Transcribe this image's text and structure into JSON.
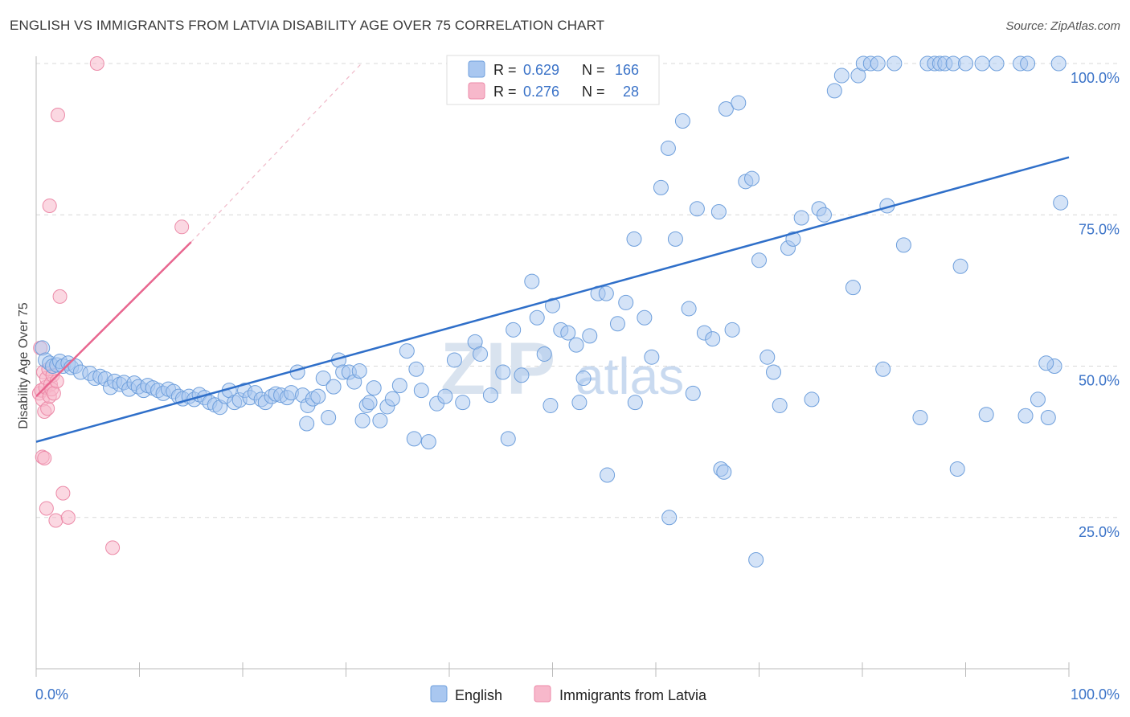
{
  "title": "ENGLISH VS IMMIGRANTS FROM LATVIA DISABILITY AGE OVER 75 CORRELATION CHART",
  "source": "Source: ZipAtlas.com",
  "watermark": {
    "zip": "ZIP",
    "atlas": "atlas"
  },
  "colors": {
    "english": "#a9c7f0",
    "english_stroke": "#6e9fdc",
    "english_line": "#2f6fc9",
    "latvia": "#f7b8cb",
    "latvia_stroke": "#ec8aa8",
    "latvia_line": "#e8668f",
    "grid": "#d8d8d8",
    "tick_label": "#3b73c8"
  },
  "legend_box": {
    "rows": [
      {
        "r_label": "R =",
        "r_value": "0.629",
        "n_label": "N =",
        "n_value": "166"
      },
      {
        "r_label": "R =",
        "r_value": "0.276",
        "n_label": "N =",
        "n_value": "28"
      }
    ]
  },
  "bottom_legend": {
    "english": "English",
    "latvia": "Immigrants from Latvia"
  },
  "chart_data": {
    "type": "scatter",
    "xlabel": "",
    "ylabel": "Disability Age Over 75",
    "xlim": [
      0,
      100
    ],
    "ylim": [
      0,
      100
    ],
    "x_tick_labels": [
      "0.0%",
      "100.0%"
    ],
    "y_tick_labels": [
      "25.0%",
      "50.0%",
      "75.0%",
      "100.0%"
    ],
    "y_ticks": [
      25,
      50,
      75,
      100
    ],
    "grid": true,
    "legend_placement": "bottom-center",
    "series": [
      {
        "name": "English",
        "r": 0.629,
        "n": 166,
        "trend": {
          "x0": 0,
          "y0": 37.5,
          "x1": 100,
          "y1": 84.5
        },
        "points": [
          [
            0.6,
            53.0
          ],
          [
            0.9,
            51.0
          ],
          [
            1.3,
            50.5
          ],
          [
            1.6,
            50.0
          ],
          [
            2.0,
            50.2
          ],
          [
            2.3,
            50.8
          ],
          [
            2.6,
            50.0
          ],
          [
            3.1,
            50.5
          ],
          [
            3.4,
            49.8
          ],
          [
            3.8,
            50.0
          ],
          [
            4.3,
            49.0
          ],
          [
            5.2,
            48.8
          ],
          [
            5.7,
            48.0
          ],
          [
            6.2,
            48.3
          ],
          [
            6.7,
            47.9
          ],
          [
            7.2,
            46.5
          ],
          [
            7.6,
            47.5
          ],
          [
            8.1,
            47.0
          ],
          [
            8.5,
            47.3
          ],
          [
            9.0,
            46.2
          ],
          [
            9.5,
            47.2
          ],
          [
            9.9,
            46.6
          ],
          [
            10.4,
            46.0
          ],
          [
            10.8,
            46.8
          ],
          [
            11.3,
            46.4
          ],
          [
            11.8,
            46.0
          ],
          [
            12.3,
            45.5
          ],
          [
            12.8,
            46.2
          ],
          [
            13.3,
            45.8
          ],
          [
            13.8,
            45.0
          ],
          [
            14.2,
            44.6
          ],
          [
            14.8,
            45.0
          ],
          [
            15.3,
            44.5
          ],
          [
            15.8,
            45.3
          ],
          [
            16.3,
            44.8
          ],
          [
            16.8,
            44.0
          ],
          [
            17.3,
            43.6
          ],
          [
            17.8,
            43.2
          ],
          [
            18.3,
            45.0
          ],
          [
            18.7,
            46.0
          ],
          [
            19.2,
            44.0
          ],
          [
            19.7,
            44.4
          ],
          [
            20.2,
            46.0
          ],
          [
            20.7,
            44.8
          ],
          [
            21.2,
            45.6
          ],
          [
            21.8,
            44.5
          ],
          [
            22.2,
            44.0
          ],
          [
            22.8,
            45.0
          ],
          [
            23.2,
            45.4
          ],
          [
            23.7,
            45.2
          ],
          [
            24.3,
            44.8
          ],
          [
            24.7,
            45.6
          ],
          [
            25.3,
            49.0
          ],
          [
            25.8,
            45.2
          ],
          [
            26.3,
            43.5
          ],
          [
            26.8,
            44.6
          ],
          [
            27.3,
            45.0
          ],
          [
            27.8,
            48.0
          ],
          [
            28.3,
            41.5
          ],
          [
            28.8,
            46.6
          ],
          [
            29.3,
            51.0
          ],
          [
            29.7,
            49.0
          ],
          [
            30.3,
            49.0
          ],
          [
            30.8,
            47.4
          ],
          [
            31.3,
            49.2
          ],
          [
            32.0,
            43.5
          ],
          [
            32.3,
            44.0
          ],
          [
            32.7,
            46.4
          ],
          [
            33.3,
            41.0
          ],
          [
            34.0,
            43.3
          ],
          [
            34.5,
            44.6
          ],
          [
            35.2,
            46.8
          ],
          [
            35.9,
            52.5
          ],
          [
            36.6,
            38.0
          ],
          [
            37.3,
            46.0
          ],
          [
            36.8,
            49.5
          ],
          [
            38.8,
            43.8
          ],
          [
            39.6,
            45.0
          ],
          [
            40.5,
            51.0
          ],
          [
            41.3,
            44.0
          ],
          [
            42.5,
            54.0
          ],
          [
            43.0,
            52.0
          ],
          [
            44.0,
            45.2
          ],
          [
            45.2,
            49.0
          ],
          [
            46.2,
            56.0
          ],
          [
            47.0,
            48.5
          ],
          [
            48.0,
            64.0
          ],
          [
            48.5,
            58.0
          ],
          [
            49.2,
            52.0
          ],
          [
            50.0,
            60.0
          ],
          [
            50.8,
            56.0
          ],
          [
            51.5,
            55.5
          ],
          [
            52.3,
            53.5
          ],
          [
            53.0,
            48.0
          ],
          [
            53.6,
            55.0
          ],
          [
            54.4,
            62.0
          ],
          [
            55.2,
            62.0
          ],
          [
            56.3,
            57.0
          ],
          [
            57.1,
            60.5
          ],
          [
            57.9,
            71.0
          ],
          [
            58.9,
            58.0
          ],
          [
            59.6,
            51.5
          ],
          [
            60.5,
            79.5
          ],
          [
            61.2,
            86.0
          ],
          [
            61.9,
            71.0
          ],
          [
            62.6,
            90.5
          ],
          [
            63.2,
            59.5
          ],
          [
            64.0,
            76.0
          ],
          [
            64.7,
            55.5
          ],
          [
            65.5,
            54.5
          ],
          [
            66.1,
            75.5
          ],
          [
            66.8,
            92.5
          ],
          [
            67.4,
            56.0
          ],
          [
            68.0,
            93.5
          ],
          [
            68.7,
            80.5
          ],
          [
            69.3,
            81.0
          ],
          [
            70.0,
            67.5
          ],
          [
            70.8,
            51.5
          ],
          [
            71.4,
            49.0
          ],
          [
            72.0,
            43.5
          ],
          [
            72.8,
            69.5
          ],
          [
            73.3,
            71.0
          ],
          [
            74.1,
            74.5
          ],
          [
            75.1,
            44.5
          ],
          [
            75.8,
            76.0
          ],
          [
            76.3,
            75.0
          ],
          [
            77.3,
            95.5
          ],
          [
            78.0,
            98.0
          ],
          [
            79.1,
            63.0
          ],
          [
            79.6,
            98.0
          ],
          [
            80.1,
            100
          ],
          [
            80.8,
            100
          ],
          [
            81.5,
            100
          ],
          [
            82.0,
            49.5
          ],
          [
            82.4,
            76.5
          ],
          [
            83.1,
            100
          ],
          [
            84.0,
            70.0
          ],
          [
            85.6,
            41.5
          ],
          [
            86.3,
            100
          ],
          [
            87.0,
            100
          ],
          [
            87.5,
            100
          ],
          [
            88.0,
            100
          ],
          [
            88.8,
            100
          ],
          [
            89.5,
            66.5
          ],
          [
            90.0,
            100
          ],
          [
            91.6,
            100
          ],
          [
            93.0,
            100
          ],
          [
            95.3,
            100
          ],
          [
            96.0,
            100
          ],
          [
            97.0,
            44.5
          ],
          [
            98.0,
            41.5
          ],
          [
            98.6,
            50.0
          ],
          [
            99.0,
            100
          ],
          [
            99.2,
            77.0
          ],
          [
            89.2,
            33.0
          ],
          [
            92.0,
            42.0
          ],
          [
            95.8,
            41.8
          ],
          [
            97.8,
            50.5
          ],
          [
            61.3,
            25.0
          ],
          [
            69.7,
            18.0
          ],
          [
            66.3,
            33.0
          ],
          [
            66.6,
            32.5
          ],
          [
            55.3,
            32.0
          ],
          [
            31.6,
            41.0
          ],
          [
            26.2,
            40.5
          ],
          [
            38.0,
            37.5
          ],
          [
            45.7,
            38.0
          ],
          [
            49.8,
            43.5
          ],
          [
            52.6,
            44.0
          ],
          [
            58.0,
            44.0
          ],
          [
            63.6,
            45.5
          ]
        ]
      },
      {
        "name": "Immigrants from Latvia",
        "r": 0.276,
        "n": 28,
        "trend": {
          "x0": 0,
          "y0": 45.0,
          "x1": 15.0,
          "y1": 70.5
        },
        "trend_extension": {
          "x0": 15.0,
          "y0": 70.5,
          "x1": 31.5,
          "y1": 100
        },
        "points": [
          [
            0.3,
            45.5
          ],
          [
            0.4,
            53.0
          ],
          [
            0.5,
            46.0
          ],
          [
            0.6,
            44.5
          ],
          [
            0.7,
            49.0
          ],
          [
            0.8,
            42.5
          ],
          [
            0.9,
            46.5
          ],
          [
            1.0,
            48.0
          ],
          [
            1.1,
            43.0
          ],
          [
            1.2,
            49.5
          ],
          [
            1.3,
            45.0
          ],
          [
            1.4,
            47.0
          ],
          [
            1.5,
            46.2
          ],
          [
            1.6,
            48.5
          ],
          [
            0.6,
            35.0
          ],
          [
            0.8,
            34.8
          ],
          [
            1.0,
            26.5
          ],
          [
            1.3,
            76.5
          ],
          [
            1.9,
            24.5
          ],
          [
            2.1,
            91.5
          ],
          [
            2.3,
            61.5
          ],
          [
            2.6,
            29.0
          ],
          [
            3.1,
            25.0
          ],
          [
            5.9,
            100
          ],
          [
            7.4,
            20.0
          ],
          [
            14.1,
            73.0
          ],
          [
            1.7,
            45.5
          ],
          [
            2.0,
            47.5
          ]
        ]
      }
    ]
  }
}
